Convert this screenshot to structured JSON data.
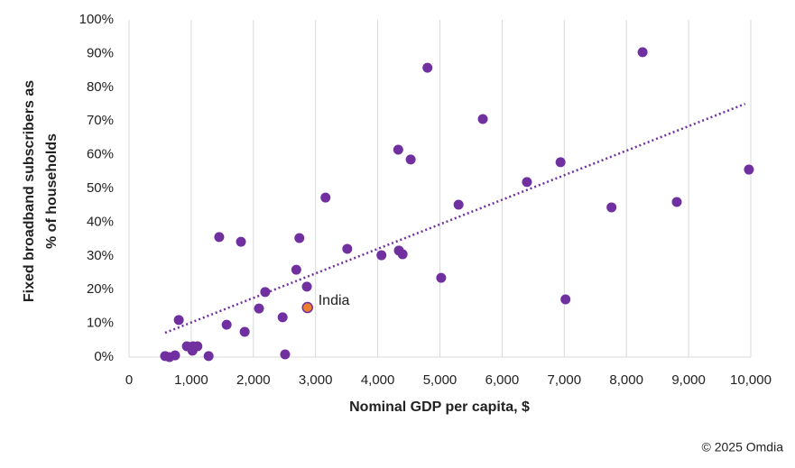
{
  "chart_data": {
    "type": "scatter",
    "x_label": "Nominal GDP per capita, $",
    "y_label": [
      "Fixed broadband subscribers as",
      "% of households"
    ],
    "source": "© 2025 Omdia",
    "color": "#7030a0",
    "x": [
      580,
      650,
      740,
      800,
      930,
      1020,
      1030,
      1100,
      1280,
      1450,
      1570,
      1800,
      1860,
      2090,
      2190,
      2470,
      2510,
      2690,
      2740,
      2860,
      3160,
      3510,
      4060,
      4330,
      4340,
      4400,
      4530,
      4800,
      5020,
      5300,
      5690,
      6400,
      6940,
      7020,
      7760,
      8260,
      8810,
      9970
    ],
    "y": [
      0.3,
      0,
      0.5,
      11,
      3.2,
      1.9,
      3.2,
      3.2,
      0.3,
      35.6,
      9.6,
      34.2,
      7.5,
      14.4,
      19.3,
      11.8,
      0.8,
      25.9,
      35.3,
      20.9,
      47.3,
      32.1,
      30.2,
      61.5,
      31.6,
      30.5,
      58.6,
      85.8,
      23.5,
      45.2,
      70.6,
      51.9,
      57.8,
      17.1,
      44.4,
      90.4,
      46,
      55.6
    ],
    "highlight": {
      "label": "India",
      "x": 2870,
      "y": 14.7,
      "color": "#ed7d31"
    },
    "trendline": {
      "x": [
        580,
        9910
      ],
      "y": [
        7.2,
        75.1
      ]
    },
    "xlim": [
      0,
      10000
    ],
    "xticks": [
      0,
      {
        "value": 1000,
        "label": "1,000"
      },
      {
        "value": 2000,
        "label": "2,000"
      },
      {
        "value": 3000,
        "label": "3,000"
      },
      {
        "value": 4000,
        "label": "4,000"
      },
      {
        "value": 5000,
        "label": "5,000"
      },
      {
        "value": 6000,
        "label": "6,000"
      },
      {
        "value": 7000,
        "label": "7,000"
      },
      {
        "value": 8000,
        "label": "8,000"
      },
      {
        "value": 9000,
        "label": "9,000"
      },
      {
        "value": 10000,
        "label": "10,000"
      }
    ],
    "ylim": [
      0,
      100
    ],
    "yticks": [
      {
        "value": 0,
        "label": "0%"
      },
      {
        "value": 10,
        "label": "10%"
      },
      {
        "value": 20,
        "label": "20%"
      },
      {
        "value": 30,
        "label": "30%"
      },
      {
        "value": 40,
        "label": "40%"
      },
      {
        "value": 50,
        "label": "50%"
      },
      {
        "value": 60,
        "label": "60%"
      },
      {
        "value": 70,
        "label": "70%"
      },
      {
        "value": 80,
        "label": "80%"
      },
      {
        "value": 90,
        "label": "90%"
      },
      {
        "value": 100,
        "label": "100%"
      }
    ],
    "grid": "x"
  }
}
